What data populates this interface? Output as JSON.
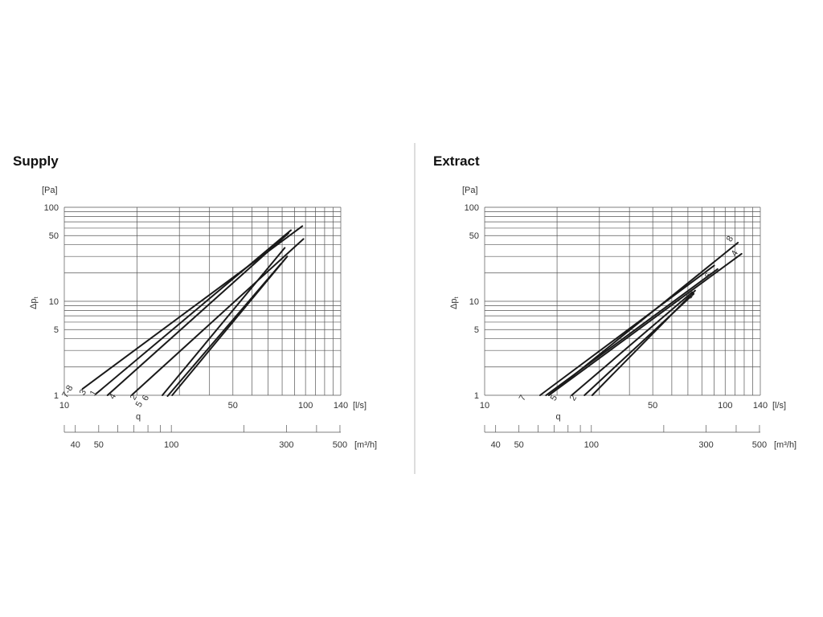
{
  "divider_color": "#bbbbbb",
  "grid_color": "#555555",
  "line_color": "#1a1a1a",
  "chart_data": [
    {
      "type": "line",
      "title": "Supply",
      "x_scale": "log",
      "y_scale": "log",
      "xlim": [
        10,
        140
      ],
      "ylim": [
        1,
        100
      ],
      "xlabel": "q",
      "x_unit": "[l/s]",
      "ylabel": "Δpt",
      "y_unit": "[Pa]",
      "x_ticks": [
        10,
        50,
        100,
        140
      ],
      "y_ticks": [
        1,
        5,
        10,
        50,
        100
      ],
      "secondary_x_unit": "[m³/h]",
      "secondary_x_ticks": [
        40,
        50,
        100,
        300,
        500
      ],
      "series": [
        {
          "name": "7-8",
          "x": [
            11.9,
            97
          ],
          "y": [
            1.17,
            63
          ]
        },
        {
          "name": "3",
          "x": [
            13.5,
            87
          ],
          "y": [
            1.03,
            57
          ]
        },
        {
          "name": "1",
          "x": [
            15.1,
            85
          ],
          "y": [
            1.0,
            53
          ]
        },
        {
          "name": "4",
          "x": [
            19.0,
            98
          ],
          "y": [
            1.0,
            46
          ]
        },
        {
          "name": "2",
          "x": [
            25.5,
            82
          ],
          "y": [
            1.0,
            37
          ]
        },
        {
          "name": "5",
          "x": [
            26.8,
            79
          ],
          "y": [
            0.98,
            25
          ]
        },
        {
          "name": "6",
          "x": [
            28.0,
            84
          ],
          "y": [
            1.0,
            30
          ]
        }
      ]
    },
    {
      "type": "line",
      "title": "Extract",
      "x_scale": "log",
      "y_scale": "log",
      "xlim": [
        10,
        140
      ],
      "ylim": [
        1,
        100
      ],
      "xlabel": "q",
      "x_unit": "[l/s]",
      "ylabel": "Δpt",
      "y_unit": "[Pa]",
      "x_ticks": [
        10,
        50,
        100,
        140
      ],
      "y_ticks": [
        1,
        5,
        10,
        50,
        100
      ],
      "secondary_x_unit": "[m³/h]",
      "secondary_x_ticks": [
        40,
        50,
        100,
        300,
        500
      ],
      "series": [
        {
          "name": "7",
          "x": [
            17.0,
            90
          ],
          "y": [
            1.0,
            24
          ]
        },
        {
          "name": "5",
          "x": [
            23.0,
            73
          ],
          "y": [
            1.0,
            12.5
          ]
        },
        {
          "name": "2",
          "x": [
            28.0,
            75
          ],
          "y": [
            1.0,
            13
          ]
        },
        {
          "name": "8",
          "x": [
            18.5,
            113
          ],
          "y": [
            1.0,
            42
          ]
        },
        {
          "name": "4",
          "x": [
            18.5,
            117
          ],
          "y": [
            1.0,
            32
          ]
        },
        {
          "name": "6",
          "x": [
            18.0,
            93
          ],
          "y": [
            1.0,
            22
          ]
        },
        {
          "name": "3",
          "x": [
            26.0,
            74
          ],
          "y": [
            1.0,
            12
          ]
        }
      ]
    }
  ],
  "end_labels": {
    "supply": [
      "7-8",
      "3",
      "1",
      "4",
      "2",
      "5",
      "6"
    ],
    "extract": [
      "7",
      "5",
      "2",
      "8",
      "4",
      "6",
      "3"
    ]
  }
}
